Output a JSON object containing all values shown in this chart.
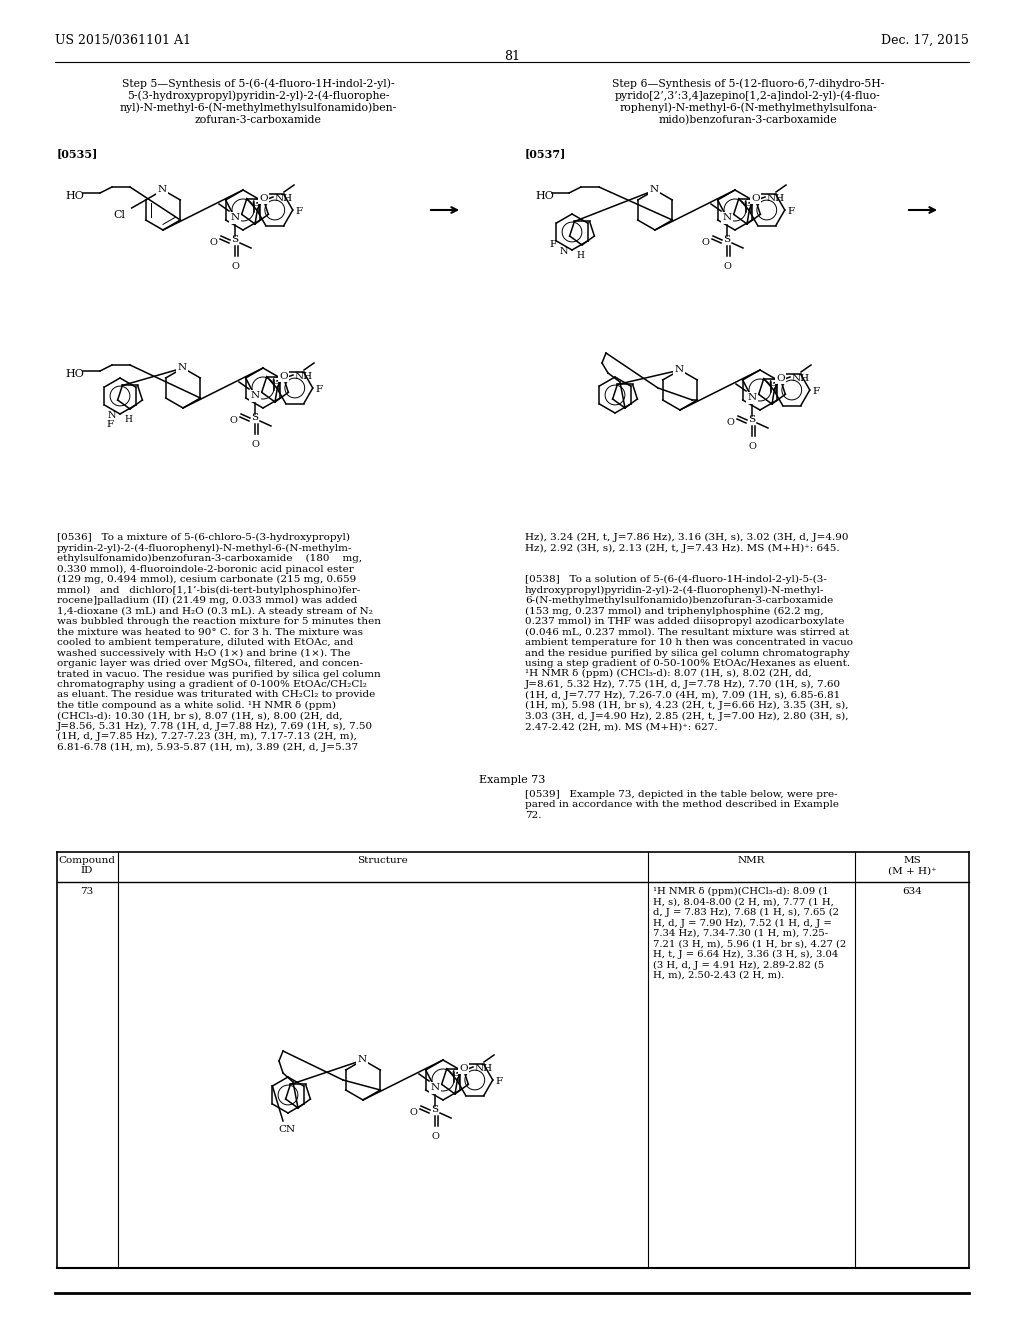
{
  "page_header_left": "US 2015/0361101 A1",
  "page_header_right": "Dec. 17, 2015",
  "page_number": "81",
  "background_color": "#ffffff",
  "figsize": [
    10.24,
    13.2
  ],
  "dpi": 100,
  "step5_title": "Step 5—Synthesis of 5-(6-(4-fluoro-1H-indol-2-yl)-\n5-(3-hydroxypropyl)pyridin-2-yl)-2-(4-fluorophe-\nnyl)-N-methyl-6-(N-methylmethylsulfonamido)ben-\nzofuran-3-carboxamide",
  "step6_title": "Step 6—Synthesis of 5-(12-fluoro-6,7-dihydro-5H-\npyrido[2’,3’:3,4]azepino[1,2-a]indol-2-yl)-(4-fluo-\nrophenyl)-N-methyl-6-(N-methylmethylsulfona-\nmido)benzofuran-3-carboxamide",
  "para0535": "[0535]",
  "para0537": "[0537]",
  "text0536": "[0536]   To a mixture of 5-(6-chloro-5-(3-hydroxypropyl)\npyridin-2-yl)-2-(4-fluorophenyl)-N-methyl-6-(N-methylm-\nethylsulfonamido)benzofuran-3-carboxamide    (180    mg,\n0.330 mmol), 4-fluoroindole-2-boronic acid pinacol ester\n(129 mg, 0.494 mmol), cesium carbonate (215 mg, 0.659\nmmol)   and   dichloro[1,1’-bis(di-tert-butylphosphino)fer-\nrocene]palladium (II) (21.49 mg, 0.033 mmol) was added\n1,4-dioxane (3 mL) and H₂O (0.3 mL). A steady stream of N₂\nwas bubbled through the reaction mixture for 5 minutes then\nthe mixture was heated to 90° C. for 3 h. The mixture was\ncooled to ambient temperature, diluted with EtOAc, and\nwashed successively with H₂O (1×) and brine (1×). The\norganic layer was dried over MgSO₄, filtered, and concen-\ntrated in vacuo. The residue was purified by silica gel column\nchromatography using a gradient of 0-100% EtOAc/CH₂Cl₂\nas eluant. The residue was triturated with CH₂Cl₂ to provide\nthe title compound as a white solid. ¹H NMR δ (ppm)\n(CHCl₃-d): 10.30 (1H, br s), 8.07 (1H, s), 8.00 (2H, dd,\nJ=8.56, 5.31 Hz), 7.78 (1H, d, J=7.88 Hz), 7.69 (1H, s), 7.50\n(1H, d, J=7.85 Hz), 7.27-7.23 (3H, m), 7.17-7.13 (2H, m),\n6.81-6.78 (1H, m), 5.93-5.87 (1H, m), 3.89 (2H, d, J=5.37",
  "text0536r": "Hz), 3.24 (2H, t, J=7.86 Hz), 3.16 (3H, s), 3.02 (3H, d, J=4.90\nHz), 2.92 (3H, s), 2.13 (2H, t, J=7.43 Hz). MS (M+H)⁺: 645.",
  "text0538": "[0538]   To a solution of 5-(6-(4-fluoro-1H-indol-2-yl)-5-(3-\nhydroxypropyl)pyridin-2-yl)-2-(4-fluorophenyl)-N-methyl-\n6-(N-methylmethylsulfonamido)benzofuran-3-carboxamide\n(153 mg, 0.237 mmol) and triphenylphosphine (62.2 mg,\n0.237 mmol) in THF was added diisopropyl azodicarboxylate\n(0.046 mL, 0.237 mmol). The resultant mixture was stirred at\nambient temperature for 10 h then was concentrated in vacuo\nand the residue purified by silica gel column chromatography\nusing a step gradient of 0-50-100% EtOAc/Hexanes as eluent.\n¹H NMR δ (ppm) (CHCl₃-d): 8.07 (1H, s), 8.02 (2H, dd,\nJ=8.61, 5.32 Hz), 7.75 (1H, d, J=7.78 Hz), 7.70 (1H, s), 7.60\n(1H, d, J=7.77 Hz), 7.26-7.0 (4H, m), 7.09 (1H, s), 6.85-6.81\n(1H, m), 5.98 (1H, br s), 4.23 (2H, t, J=6.66 Hz), 3.35 (3H, s),\n3.03 (3H, d, J=4.90 Hz), 2.85 (2H, t, J=7.00 Hz), 2.80 (3H, s),\n2.47-2.42 (2H, m). MS (M+H)⁺: 627.",
  "example73_title": "Example 73",
  "text0539": "[0539]   Example 73, depicted in the table below, were pre-\npared in accordance with the method described in Example\n72.",
  "table_col_id": "Compound\nID",
  "table_col_structure": "Structure",
  "table_col_nmr": "NMR",
  "table_col_ms": "MS\n(M + H)⁺",
  "table_row_id": "73",
  "table_row_ms": "634",
  "table_row_nmr": "¹H NMR δ (ppm)(CHCl₃-d): 8.09 (1\nH, s), 8.04-8.00 (2 H, m), 7.77 (1 H,\nd, J = 7.83 Hz), 7.68 (1 H, s), 7.65 (2\nH, d, J = 7.90 Hz), 7.52 (1 H, d, J =\n7.34 Hz), 7.34-7.30 (1 H, m), 7.25-\n7.21 (3 H, m), 5.96 (1 H, br s), 4.27 (2\nH, t, J = 6.64 Hz), 3.36 (3 H, s), 3.04\n(3 H, d, J = 4.91 Hz), 2.89-2.82 (5\nH, m), 2.50-2.43 (2 H, m)."
}
